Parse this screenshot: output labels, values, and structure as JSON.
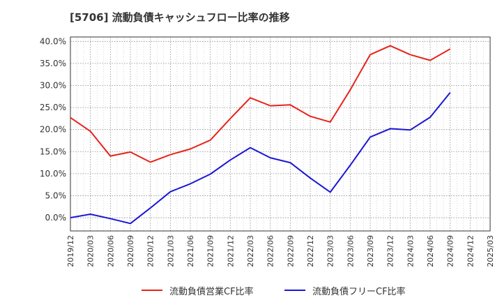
{
  "chart_data": {
    "type": "line",
    "title": "[5706]  流動負債キャッシュフロー比率の推移",
    "xlabel": "",
    "ylabel": "",
    "ylim": [
      -3,
      41
    ],
    "y_ticks": [
      0,
      5,
      10,
      15,
      20,
      25,
      30,
      35,
      40
    ],
    "y_tick_labels": [
      "0.0%",
      "5.0%",
      "10.0%",
      "15.0%",
      "20.0%",
      "25.0%",
      "30.0%",
      "35.0%",
      "40.0%"
    ],
    "x_tick_labels": [
      "2019/12",
      "2020/03",
      "2020/06",
      "2020/09",
      "2020/12",
      "2021/03",
      "2021/06",
      "2021/09",
      "2021/12",
      "2022/03",
      "2022/06",
      "2022/09",
      "2022/12",
      "2023/03",
      "2023/06",
      "2023/09",
      "2023/12",
      "2024/03",
      "2024/06",
      "2024/09",
      "2024/12",
      "2025/03"
    ],
    "grid": true,
    "legend_position": "bottom",
    "series": [
      {
        "name": "流動負債営業CF比率",
        "color": "#e8221a",
        "x": [
          "2019/12",
          "2020/03",
          "2020/06",
          "2020/09",
          "2020/12",
          "2021/03",
          "2021/06",
          "2021/09",
          "2021/12",
          "2022/03",
          "2022/06",
          "2022/09",
          "2022/12",
          "2023/03",
          "2023/06",
          "2023/09",
          "2023/12",
          "2024/03",
          "2024/06",
          "2024/09"
        ],
        "values": [
          22.7,
          19.6,
          14.0,
          14.9,
          12.6,
          14.3,
          15.6,
          17.6,
          22.5,
          27.2,
          25.4,
          25.6,
          23.0,
          21.7,
          29.0,
          37.0,
          39.0,
          37.0,
          35.7,
          38.3
        ]
      },
      {
        "name": "流動負債フリーCF比率",
        "color": "#1a16d6",
        "x": [
          "2019/12",
          "2020/03",
          "2020/06",
          "2020/09",
          "2020/12",
          "2021/03",
          "2021/06",
          "2021/09",
          "2021/12",
          "2022/03",
          "2022/06",
          "2022/09",
          "2022/12",
          "2023/03",
          "2023/06",
          "2023/09",
          "2023/12",
          "2024/03",
          "2024/06",
          "2024/09"
        ],
        "values": [
          0.0,
          0.8,
          -0.2,
          -1.3,
          2.2,
          5.9,
          7.7,
          9.9,
          13.1,
          15.9,
          13.6,
          12.5,
          9.0,
          5.8,
          11.9,
          18.3,
          20.2,
          19.9,
          22.8,
          28.4
        ]
      }
    ]
  }
}
